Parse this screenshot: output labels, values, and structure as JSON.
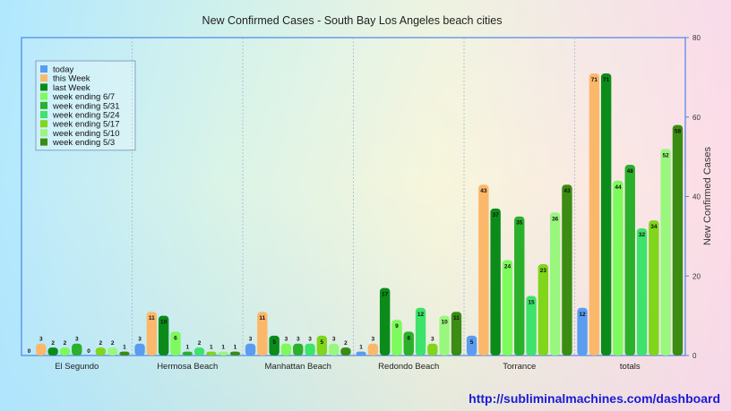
{
  "chart_data": {
    "type": "bar",
    "title": "New Confirmed Cases - South Bay Los Angeles beach cities",
    "ylabel": "New Confirmed Cases",
    "xlabel": "",
    "ylim": [
      0,
      80
    ],
    "yticks": [
      0,
      20,
      40,
      60,
      80
    ],
    "grid": "vertical dashed separators between categories",
    "legend_position": "top-left",
    "categories": [
      "El Segundo",
      "Hermosa Beach",
      "Manhattan Beach",
      "Redondo Beach",
      "Torrance",
      "totals"
    ],
    "series": [
      {
        "name": "today",
        "color": "#5b9cf0",
        "values": [
          0,
          3,
          3,
          1,
          5,
          12
        ]
      },
      {
        "name": "this Week",
        "color": "#fbb86b",
        "values": [
          3,
          11,
          11,
          3,
          43,
          71
        ]
      },
      {
        "name": "last Week",
        "color": "#0b8c1a",
        "values": [
          2,
          10,
          5,
          17,
          37,
          71
        ]
      },
      {
        "name": "week ending 6/7",
        "color": "#7dfa5c",
        "values": [
          2,
          6,
          3,
          9,
          24,
          44
        ]
      },
      {
        "name": "week ending 5/31",
        "color": "#2bb02b",
        "values": [
          3,
          1,
          3,
          6,
          35,
          48
        ]
      },
      {
        "name": "week ending 5/24",
        "color": "#3de36a",
        "values": [
          0,
          2,
          3,
          12,
          15,
          32
        ]
      },
      {
        "name": "week ending 5/17",
        "color": "#7fd61a",
        "values": [
          2,
          1,
          5,
          3,
          23,
          34
        ]
      },
      {
        "name": "week ending 5/10",
        "color": "#99f77e",
        "values": [
          2,
          1,
          3,
          10,
          36,
          52
        ]
      },
      {
        "name": "week ending 5/3",
        "color": "#3a8c12",
        "values": [
          1,
          1,
          2,
          11,
          43,
          58
        ]
      }
    ]
  },
  "footer": {
    "url": "http://subliminalmachines.com/dashboard"
  }
}
